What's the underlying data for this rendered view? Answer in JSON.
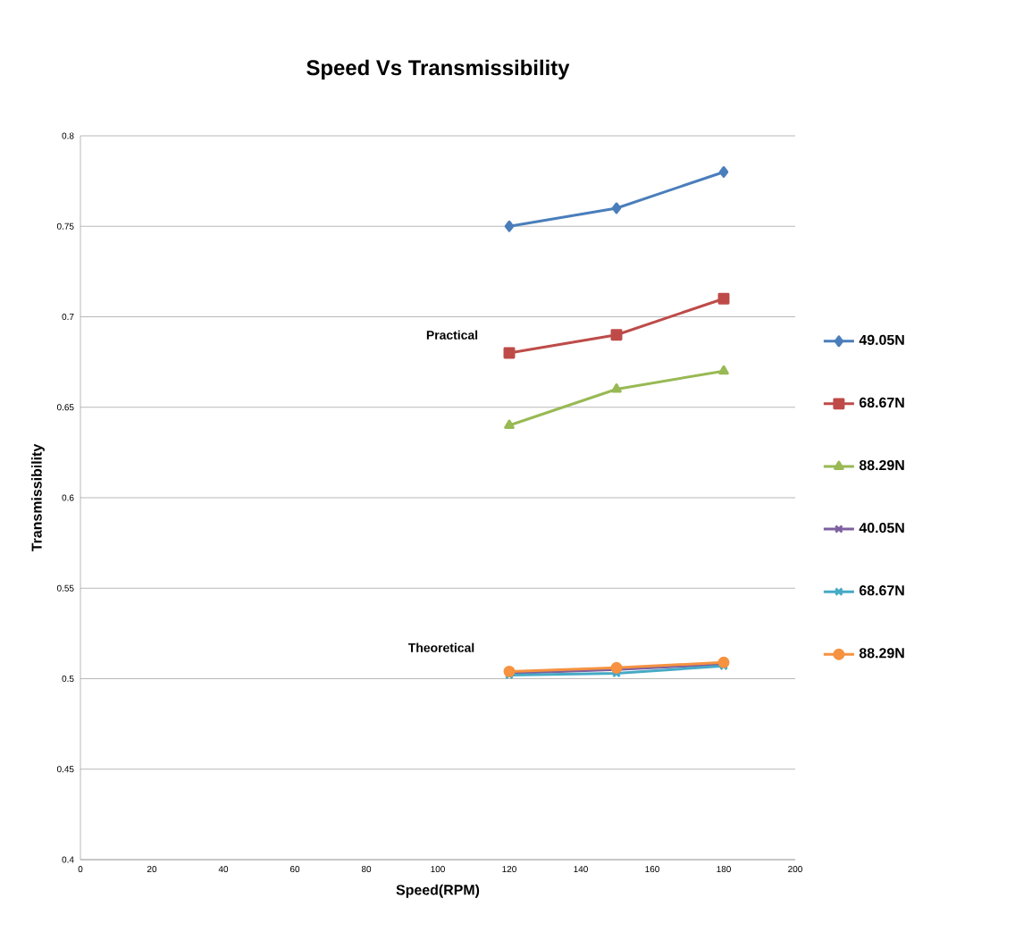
{
  "chart_data": {
    "type": "line",
    "title": "Speed Vs Transmissibility",
    "xlabel": "Speed(RPM)",
    "ylabel": "Transmissibility",
    "x": [
      120,
      150,
      180
    ],
    "series": [
      {
        "name": "49.05N",
        "color": "#4a7ebb",
        "marker": "diamond",
        "values": [
          0.75,
          0.76,
          0.78
        ]
      },
      {
        "name": "68.67N",
        "color": "#be4b48",
        "marker": "square",
        "values": [
          0.68,
          0.69,
          0.71
        ]
      },
      {
        "name": "88.29N",
        "color": "#98b954",
        "marker": "triangle",
        "values": [
          0.64,
          0.66,
          0.67
        ]
      },
      {
        "name": "40.05N",
        "color": "#7d60a0",
        "marker": "cross",
        "values": [
          0.503,
          0.505,
          0.508
        ]
      },
      {
        "name": "68.67N",
        "color": "#46aac5",
        "marker": "cross",
        "values": [
          0.502,
          0.503,
          0.507
        ]
      },
      {
        "name": "88.29N",
        "color": "#f69240",
        "marker": "circle",
        "values": [
          0.504,
          0.506,
          0.509
        ]
      }
    ],
    "xlim": [
      0,
      200
    ],
    "xticks": [
      0,
      20,
      40,
      60,
      80,
      100,
      120,
      140,
      160,
      180,
      200
    ],
    "ylim": [
      0.4,
      0.8
    ],
    "yticks": [
      {
        "value": 0.4,
        "label": "0.4"
      },
      {
        "value": 0.45,
        "label": "0.45"
      },
      {
        "value": 0.5,
        "label": "0.5"
      },
      {
        "value": 0.55,
        "label": "0.55"
      },
      {
        "value": 0.6,
        "label": "0.6"
      },
      {
        "value": 0.65,
        "label": "0.65"
      },
      {
        "value": 0.7,
        "label": "0.7"
      },
      {
        "value": 0.75,
        "label": "0.75"
      },
      {
        "value": 0.8,
        "label": "0.8"
      }
    ],
    "grid": "y",
    "legend": "right",
    "annotations": [
      "Practical",
      "Theoretical"
    ]
  }
}
